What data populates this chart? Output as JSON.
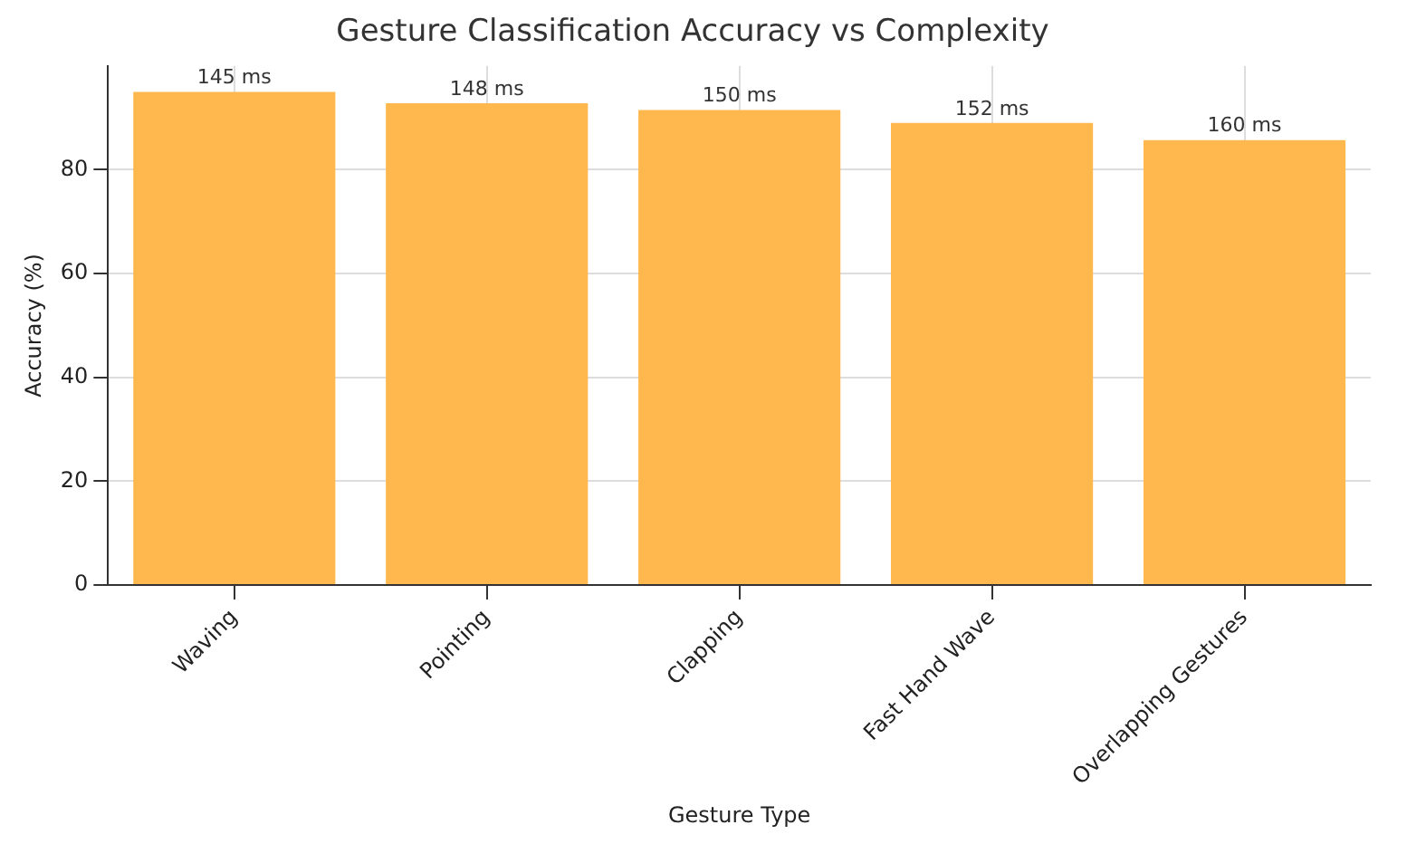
{
  "chart_data": {
    "type": "bar",
    "title": "Gesture Classification Accuracy vs Complexity",
    "xlabel": "Gesture Type",
    "ylabel": "Accuracy (%)",
    "categories": [
      "Waving",
      "Pointing",
      "Clapping",
      "Fast Hand Wave",
      "Overlapping Gestures"
    ],
    "values": [
      95,
      92.8,
      91.5,
      89,
      85.7
    ],
    "annotations": [
      {
        "text": "145 ms",
        "x": "Waving",
        "y": 95
      },
      {
        "text": "148 ms",
        "x": "Pointing",
        "y": 92.8
      },
      {
        "text": "150 ms",
        "x": "Clapping",
        "y": 91.5
      },
      {
        "text": "152 ms",
        "x": "Fast Hand Wave",
        "y": 89
      },
      {
        "text": "160 ms",
        "x": "Overlapping Gestures",
        "y": 85.7
      }
    ],
    "color": "#ffb84d",
    "ylim": [
      0,
      100
    ],
    "yticks": [
      0,
      20,
      40,
      60,
      80
    ],
    "grid": true
  }
}
